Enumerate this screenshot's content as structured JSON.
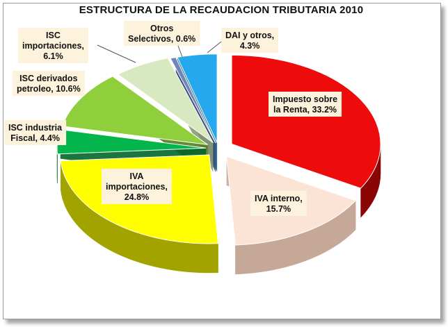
{
  "chart_data": {
    "type": "pie",
    "title": "ESTRUCTURA DE LA RECAUDACION TRIBUTARIA 2010",
    "slices": [
      {
        "name": "Impuesto sobre la Renta",
        "value": 33.2,
        "label_lines": [
          "Impuesto sobre",
          "la Renta, 33.2%"
        ],
        "color": "#ee0b0b",
        "side": "#8a0404"
      },
      {
        "name": "IVA interno",
        "value": 15.7,
        "label_lines": [
          "IVA interno,",
          "15.7%"
        ],
        "color": "#fbe3d6",
        "side": "#c6a898"
      },
      {
        "name": "IVA importaciones",
        "value": 24.8,
        "label_lines": [
          "IVA",
          "importaciones,",
          "24.8%"
        ],
        "color": "#ffff00",
        "side": "#a3a300"
      },
      {
        "name": "ISC industria Fiscal",
        "value": 4.4,
        "label_lines": [
          "ISC industria",
          "Fiscal, 4.4%"
        ],
        "color": "#03b54a",
        "side": "#01662a"
      },
      {
        "name": "ISC derivados petroleo",
        "value": 10.6,
        "label_lines": [
          "ISC derivados",
          "petroleo, 10.6%"
        ],
        "color": "#8fcf3c",
        "side": "#557d22"
      },
      {
        "name": "ISC importaciones",
        "value": 6.1,
        "label_lines": [
          "ISC",
          "importaciones,",
          "6.1%"
        ],
        "color": "#d8e8c0",
        "side": "#8a9a75"
      },
      {
        "name": "Otros Selectivos",
        "value": 0.6,
        "label_lines": [
          "Otros",
          "Selectivos, 0.6%"
        ],
        "color": "#6f86b8",
        "side": "#3c4f77"
      },
      {
        "name": "DAI y otros",
        "value": 4.3,
        "label_lines": [
          "DAI y otros,",
          "4.3%"
        ],
        "color": "#26a8ee",
        "side": "#12628f"
      }
    ],
    "start_angle_deg": 0,
    "direction": "clockwise",
    "exploded": true,
    "label_box_color": "#fdf3dc"
  }
}
